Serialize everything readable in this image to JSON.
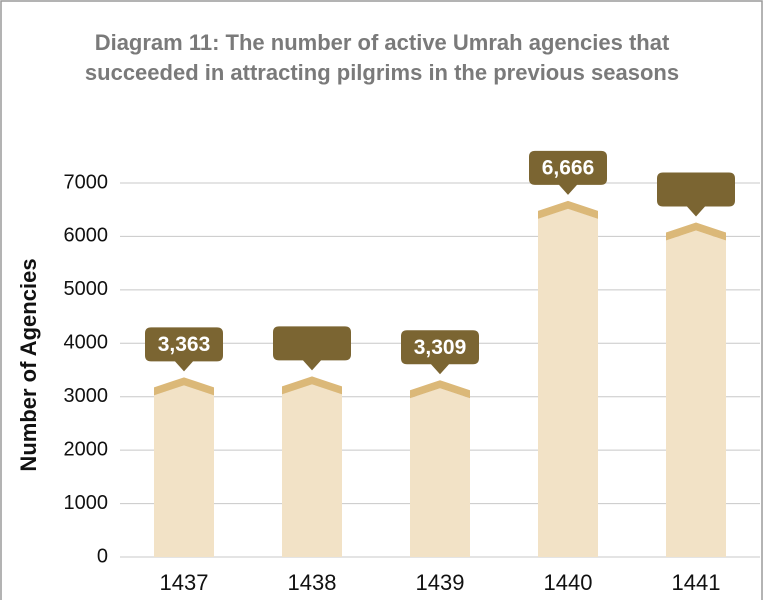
{
  "chart_data": {
    "type": "bar",
    "title": [
      "Diagram 11: The number of active Umrah agencies that",
      "succeeded in attracting pilgrims in the previous seasons"
    ],
    "y_label": "Number of Agencies",
    "categories": [
      "1437",
      "1438",
      "1439",
      "1440",
      "1441"
    ],
    "values": [
      3363,
      3380,
      3309,
      6666,
      6260
    ],
    "value_labels": [
      "3,363",
      null,
      "3,309",
      "6,666",
      null
    ],
    "color": "#f2e2c6",
    "cap_color": "#dbb878",
    "label_color": "#7b6532",
    "ylim": [
      0,
      7000
    ],
    "yticks": [
      0,
      1000,
      2000,
      3000,
      4000,
      5000,
      6000,
      7000
    ],
    "grid": true
  }
}
